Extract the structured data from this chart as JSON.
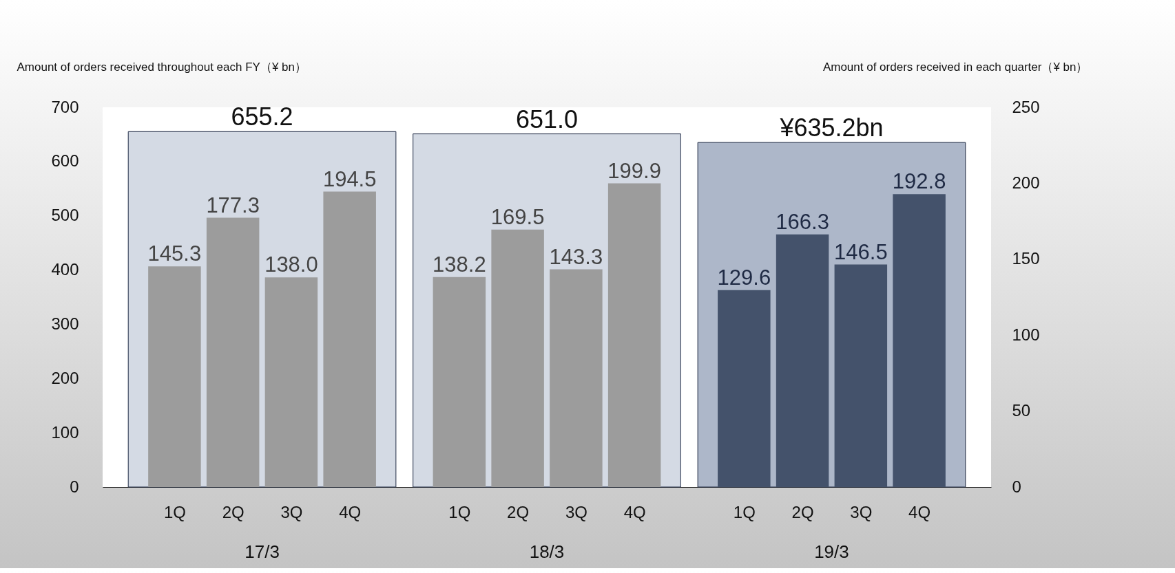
{
  "chart_data": {
    "type": "bar",
    "categories": [
      "17/3",
      "18/3",
      "19/3"
    ],
    "ylabel": "Amount of orders received throughout each FY（¥ bn）",
    "y2label": "Amount of orders received in each quarter（¥ bn）",
    "series": [
      {
        "axis": "y",
        "colors": [
          "#d4dae4",
          "#d4dae4",
          "#adb7c9"
        ],
        "values": [
          655.2,
          651.0,
          635.2
        ],
        "value_labels": [
          "655.2",
          "651.0",
          "¥635.2bn"
        ]
      },
      {
        "name": "1Q",
        "axis": "y2",
        "colors": [
          "#9c9c9c",
          "#9c9c9c",
          "#44526b"
        ],
        "values": [
          145.3,
          138.2,
          129.6
        ],
        "value_labels": [
          "145.3",
          "138.2",
          "129.6"
        ]
      },
      {
        "name": "2Q",
        "axis": "y2",
        "colors": [
          "#9c9c9c",
          "#9c9c9c",
          "#44526b"
        ],
        "values": [
          177.3,
          169.5,
          166.3
        ],
        "value_labels": [
          "177.3",
          "169.5",
          "166.3"
        ]
      },
      {
        "name": "3Q",
        "axis": "y2",
        "colors": [
          "#9c9c9c",
          "#9c9c9c",
          "#44526b"
        ],
        "values": [
          138.0,
          143.3,
          146.5
        ],
        "value_labels": [
          "138.0",
          "143.3",
          "146.5"
        ]
      },
      {
        "name": "4Q",
        "axis": "y2",
        "colors": [
          "#9c9c9c",
          "#9c9c9c",
          "#44526b"
        ],
        "values": [
          194.5,
          199.9,
          192.8
        ],
        "value_labels": [
          "194.5",
          "199.9",
          "192.8"
        ]
      }
    ],
    "ylim": [
      0,
      700
    ],
    "yticks": [
      0,
      100,
      200,
      300,
      400,
      500,
      600,
      700
    ],
    "y2lim": [
      0,
      250
    ],
    "y2ticks": [
      0,
      50,
      100,
      150,
      200,
      250
    ],
    "grid": false,
    "legend": false
  }
}
